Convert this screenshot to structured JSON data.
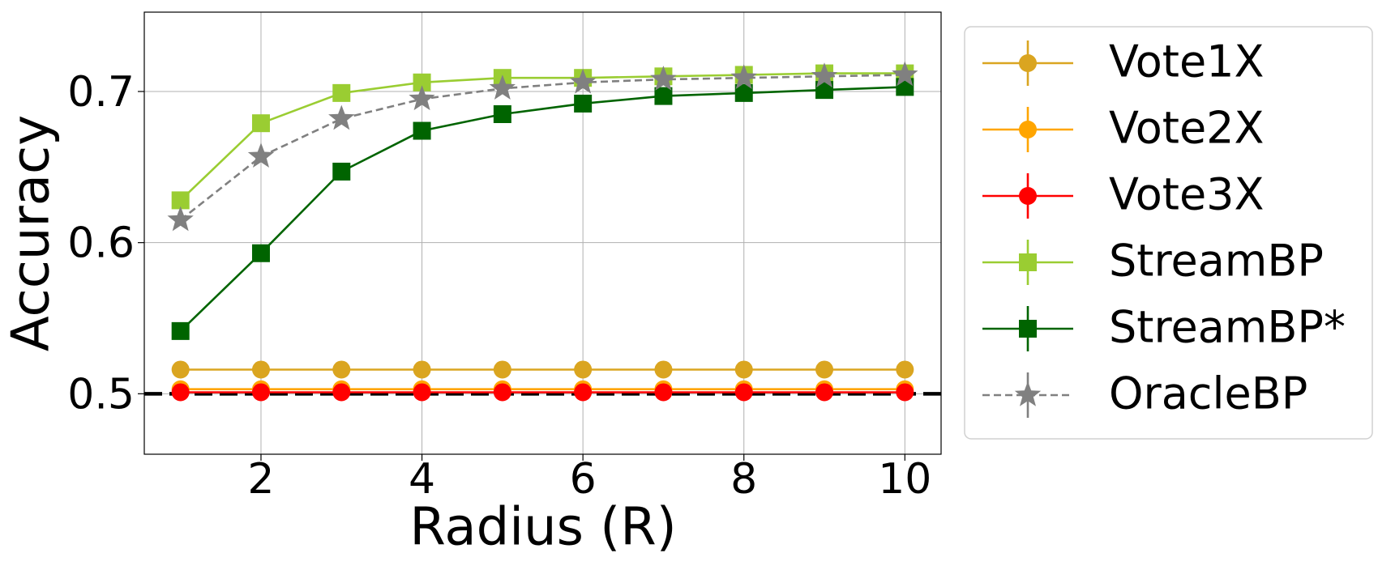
{
  "chart_data": {
    "type": "line",
    "xlabel": "Radius (R)",
    "ylabel": "Accuracy",
    "x": [
      1,
      2,
      3,
      4,
      5,
      6,
      7,
      8,
      9,
      10
    ],
    "series": [
      {
        "name": "Vote1X",
        "color": "#DAA520",
        "marker": "circle",
        "dash": false,
        "values": [
          0.516,
          0.516,
          0.516,
          0.516,
          0.516,
          0.516,
          0.516,
          0.516,
          0.516,
          0.516
        ]
      },
      {
        "name": "Vote2X",
        "color": "#FFA500",
        "marker": "circle",
        "dash": false,
        "values": [
          0.503,
          0.503,
          0.503,
          0.503,
          0.503,
          0.503,
          0.503,
          0.503,
          0.503,
          0.503
        ]
      },
      {
        "name": "Vote3X",
        "color": "#FF0000",
        "marker": "circle",
        "dash": false,
        "values": [
          0.501,
          0.501,
          0.501,
          0.501,
          0.501,
          0.501,
          0.501,
          0.501,
          0.501,
          0.501
        ]
      },
      {
        "name": "StreamBP",
        "color": "#9ACD32",
        "marker": "square",
        "dash": false,
        "values": [
          0.628,
          0.679,
          0.699,
          0.706,
          0.709,
          0.709,
          0.71,
          0.711,
          0.712,
          0.712
        ]
      },
      {
        "name": "StreamBP*",
        "color": "#006400",
        "marker": "square",
        "dash": false,
        "values": [
          0.5415,
          0.593,
          0.647,
          0.674,
          0.685,
          0.692,
          0.697,
          0.699,
          0.701,
          0.703
        ]
      },
      {
        "name": "OracleBP",
        "color": "#808080",
        "marker": "star",
        "dash": true,
        "values": [
          0.615,
          0.657,
          0.682,
          0.695,
          0.702,
          0.706,
          0.708,
          0.709,
          0.71,
          0.711
        ]
      }
    ],
    "reference_line": 0.5,
    "xlim": [
      0.55,
      10.45
    ],
    "ylim": [
      0.46,
      0.7525
    ],
    "xticks": [
      2,
      4,
      6,
      8,
      10
    ],
    "yticks": [
      0.5,
      0.6,
      0.7
    ],
    "grid": true,
    "legend": "outside-right"
  }
}
